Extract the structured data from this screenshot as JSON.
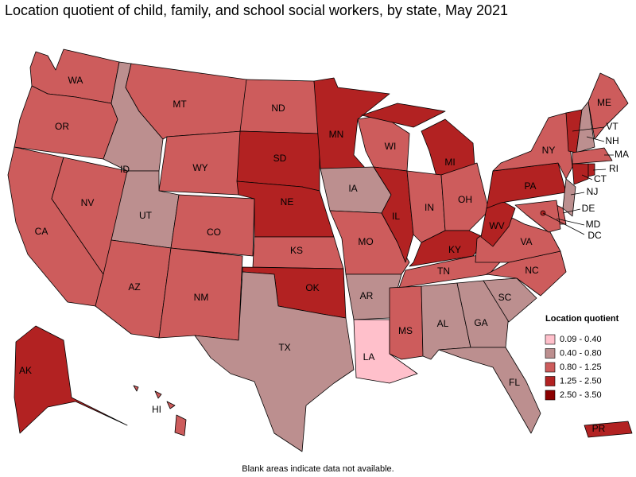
{
  "title": "Location quotient of child, family, and school social workers, by state, May 2021",
  "footnote": "Blank areas indicate data not available.",
  "legend": {
    "title": "Location quotient",
    "items": [
      {
        "label": "0.09 - 0.40",
        "color": "#ffc0cb"
      },
      {
        "label": "0.40 - 0.80",
        "color": "#bc8f8f"
      },
      {
        "label": "0.80 - 1.25",
        "color": "#cd5c5c"
      },
      {
        "label": "1.25 - 2.50",
        "color": "#b22222"
      },
      {
        "label": "2.50 - 3.50",
        "color": "#8b0000"
      }
    ]
  },
  "states": [
    {
      "label": "WA",
      "color": "#cd5c5c"
    },
    {
      "label": "OR",
      "color": "#cd5c5c"
    },
    {
      "label": "CA",
      "color": "#cd5c5c"
    },
    {
      "label": "NV",
      "color": "#cd5c5c"
    },
    {
      "label": "ID",
      "color": "#bc8f8f"
    },
    {
      "label": "MT",
      "color": "#cd5c5c"
    },
    {
      "label": "WY",
      "color": "#cd5c5c"
    },
    {
      "label": "UT",
      "color": "#bc8f8f"
    },
    {
      "label": "CO",
      "color": "#cd5c5c"
    },
    {
      "label": "AZ",
      "color": "#cd5c5c"
    },
    {
      "label": "NM",
      "color": "#cd5c5c"
    },
    {
      "label": "ND",
      "color": "#cd5c5c"
    },
    {
      "label": "SD",
      "color": "#b22222"
    },
    {
      "label": "NE",
      "color": "#b22222"
    },
    {
      "label": "KS",
      "color": "#cd5c5c"
    },
    {
      "label": "OK",
      "color": "#b22222"
    },
    {
      "label": "TX",
      "color": "#bc8f8f"
    },
    {
      "label": "MN",
      "color": "#b22222"
    },
    {
      "label": "IA",
      "color": "#bc8f8f"
    },
    {
      "label": "MO",
      "color": "#cd5c5c"
    },
    {
      "label": "AR",
      "color": "#bc8f8f"
    },
    {
      "label": "LA",
      "color": "#ffc0cb"
    },
    {
      "label": "WI",
      "color": "#cd5c5c"
    },
    {
      "label": "IL",
      "color": "#b22222"
    },
    {
      "label": "MI",
      "color": "#b22222"
    },
    {
      "label": "IN",
      "color": "#cd5c5c"
    },
    {
      "label": "OH",
      "color": "#cd5c5c"
    },
    {
      "label": "KY",
      "color": "#b22222"
    },
    {
      "label": "TN",
      "color": "#cd5c5c"
    },
    {
      "label": "MS",
      "color": "#cd5c5c"
    },
    {
      "label": "AL",
      "color": "#bc8f8f"
    },
    {
      "label": "GA",
      "color": "#bc8f8f"
    },
    {
      "label": "FL",
      "color": "#bc8f8f"
    },
    {
      "label": "SC",
      "color": "#bc8f8f"
    },
    {
      "label": "NC",
      "color": "#cd5c5c"
    },
    {
      "label": "VA",
      "color": "#cd5c5c"
    },
    {
      "label": "WV",
      "color": "#b22222"
    },
    {
      "label": "PA",
      "color": "#b22222"
    },
    {
      "label": "NY",
      "color": "#cd5c5c"
    },
    {
      "label": "VT",
      "color": "#b22222"
    },
    {
      "label": "NH",
      "color": "#bc8f8f"
    },
    {
      "label": "ME",
      "color": "#cd5c5c"
    },
    {
      "label": "MA",
      "color": "#cd5c5c"
    },
    {
      "label": "CT",
      "color": "#b22222"
    },
    {
      "label": "RI",
      "color": "#b22222"
    },
    {
      "label": "NJ",
      "color": "#bc8f8f"
    },
    {
      "label": "DE",
      "color": "#cd5c5c"
    },
    {
      "label": "MD",
      "color": "#cd5c5c"
    },
    {
      "label": "DC",
      "color": "#b22222"
    },
    {
      "label": "AK",
      "color": "#b22222"
    },
    {
      "label": "HI",
      "color": "#cd5c5c"
    },
    {
      "label": "PR",
      "color": "#b22222"
    }
  ]
}
